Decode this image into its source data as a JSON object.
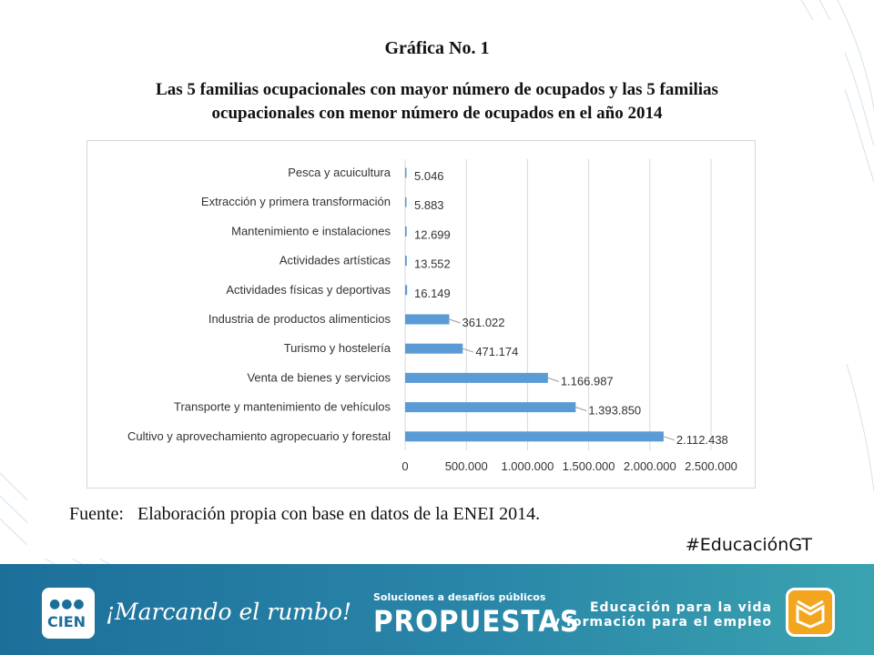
{
  "figure": {
    "label": "Gráfica No. 1",
    "title_line1": "Las 5 familias ocupacionales con mayor número de ocupados y las 5 familias",
    "title_line2": "ocupacionales con menor número de ocupados en el año 2014"
  },
  "chart_data": {
    "type": "bar",
    "orientation": "horizontal",
    "categories": [
      "Pesca y acuicultura",
      "Extracción y primera transformación",
      "Mantenimiento e instalaciones",
      "Actividades artísticas",
      "Actividades físicas y deportivas",
      "Industria de productos alimenticios",
      "Turismo y hostelería",
      "Venta de bienes y servicios",
      "Transporte y mantenimiento de vehículos",
      "Cultivo y aprovechamiento agropecuario y forestal"
    ],
    "values": [
      5046,
      5883,
      12699,
      13552,
      16149,
      361022,
      471174,
      1166987,
      1393850,
      2112438
    ],
    "data_labels": [
      "5.046",
      "5.883",
      "12.699",
      "13.552",
      "16.149",
      "361.022",
      "471.174",
      "1.166.987",
      "1.393.850",
      "2.112.438"
    ],
    "x_ticks": [
      0,
      500000,
      1000000,
      1500000,
      2000000,
      2500000
    ],
    "x_tick_labels": [
      "0",
      "500.000",
      "1.000.000",
      "1.500.000",
      "2.000.000",
      "2.500.000"
    ],
    "xlim": [
      0,
      2500000
    ],
    "grid": true,
    "bar_color": "#5b9bd5",
    "title": "Las 5 familias ocupacionales con mayor número de ocupados y las 5 familias ocupacionales con menor número de ocupados en el año 2014"
  },
  "source": {
    "label": "Fuente:",
    "text": "Elaboración propia con base en datos de la ENEI 2014."
  },
  "hashtag": "#EducaciónGT",
  "footer": {
    "logo_text": "CIEN",
    "tagline": "¡Marcando el rumbo!",
    "propuestas_sub": "Soluciones a desafíos públicos",
    "propuestas": "PROPUESTAS",
    "education_line1": "Educación para la vida",
    "education_line2": "y formación para el empleo"
  }
}
